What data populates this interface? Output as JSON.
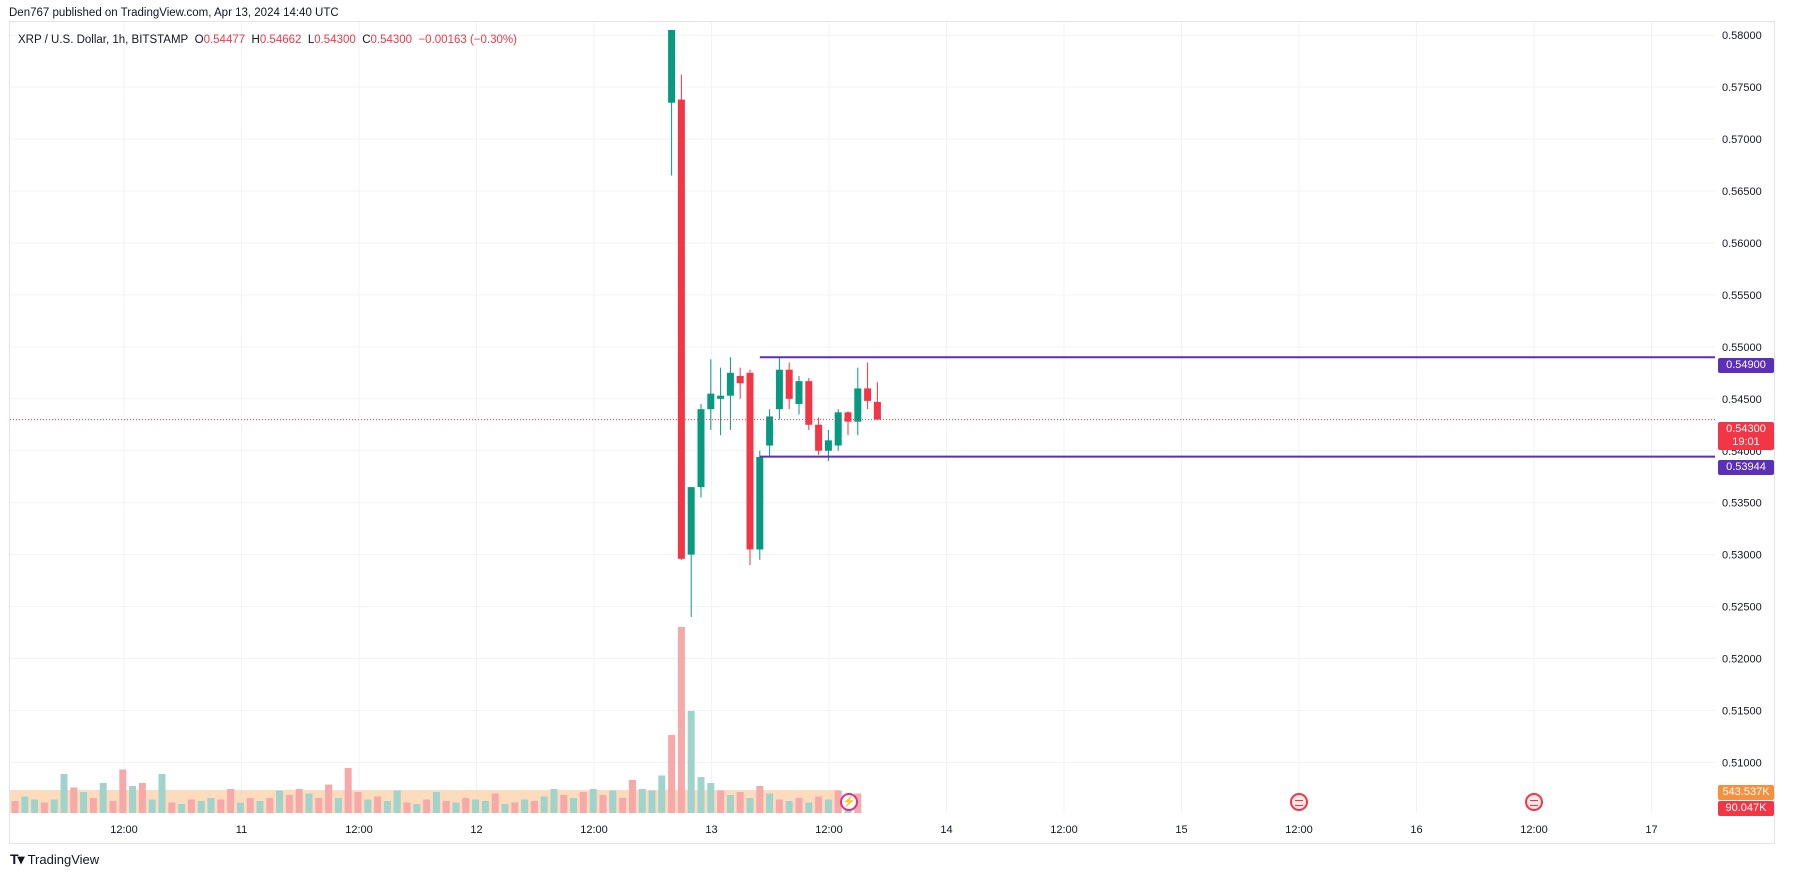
{
  "header": {
    "published": "Den767 published on TradingView.com, Apr 13, 2024 14:40 UTC"
  },
  "legend": {
    "symbol": "XRP / U.S. Dollar, 1h, BITSTAMP",
    "o_label": "O",
    "o": "0.54477",
    "h_label": "H",
    "h": "0.54662",
    "l_label": "L",
    "l": "0.54300",
    "c_label": "C",
    "c": "0.54300",
    "change": "−0.00163 (−0.30%)"
  },
  "price_tags": {
    "upper_level": "0.54900",
    "current": "0.54300",
    "countdown": "19:01",
    "lower_level": "0.53944",
    "volume_ma": "543.537K",
    "volume": "90.047K"
  },
  "footer": {
    "brand": "TradingView"
  },
  "colors": {
    "up": "#089981",
    "down": "#f23645",
    "level_line": "#5b2fb8",
    "vol_up": "#9fd3cb",
    "vol_down": "#f7a9a9",
    "vol_ma_band": "#fcd0a8",
    "grid": "#f0f3fa"
  },
  "icons": [
    "us-flag-event-icon",
    "us-flag-event-icon",
    "flash-icon"
  ],
  "chart_data": {
    "type": "candlestick",
    "interval": "1h",
    "y_axis": {
      "ticks": [
        "0.58000",
        "0.57500",
        "0.57000",
        "0.56500",
        "0.56000",
        "0.55500",
        "0.55000",
        "0.54500",
        "0.54000",
        "0.53500",
        "0.53000",
        "0.52500",
        "0.52000",
        "0.51500",
        "0.51000"
      ],
      "ylim": [
        0.5085,
        0.5805
      ],
      "position": "right"
    },
    "x_axis": {
      "ticks": [
        "12:00",
        "11",
        "12:00",
        "12",
        "12:00",
        "13",
        "12:00",
        "14",
        "12:00",
        "15",
        "12:00",
        "16",
        "12:00",
        "17"
      ]
    },
    "levels": [
      0.549,
      0.53944
    ],
    "current_price": 0.543,
    "candles_note": "only candles after the spike are shown with price; earlier bars are volume only",
    "candles": [
      {
        "o": 0.5735,
        "h": 0.5805,
        "l": 0.5665,
        "c": 0.5805
      },
      {
        "o": 0.5738,
        "h": 0.5762,
        "l": 0.5295,
        "c": 0.5296
      },
      {
        "o": 0.53,
        "h": 0.5365,
        "l": 0.524,
        "c": 0.5365
      },
      {
        "o": 0.5365,
        "h": 0.5445,
        "l": 0.5355,
        "c": 0.544
      },
      {
        "o": 0.544,
        "h": 0.5488,
        "l": 0.542,
        "c": 0.5455
      },
      {
        "o": 0.545,
        "h": 0.548,
        "l": 0.5415,
        "c": 0.5453
      },
      {
        "o": 0.5453,
        "h": 0.549,
        "l": 0.542,
        "c": 0.5475
      },
      {
        "o": 0.5472,
        "h": 0.548,
        "l": 0.545,
        "c": 0.5465
      },
      {
        "o": 0.5475,
        "h": 0.5478,
        "l": 0.529,
        "c": 0.5305
      },
      {
        "o": 0.5305,
        "h": 0.54,
        "l": 0.5295,
        "c": 0.5394
      },
      {
        "o": 0.5405,
        "h": 0.544,
        "l": 0.5395,
        "c": 0.5433
      },
      {
        "o": 0.544,
        "h": 0.549,
        "l": 0.543,
        "c": 0.5478
      },
      {
        "o": 0.5478,
        "h": 0.5485,
        "l": 0.544,
        "c": 0.545
      },
      {
        "o": 0.5445,
        "h": 0.5472,
        "l": 0.5435,
        "c": 0.5467
      },
      {
        "o": 0.5467,
        "h": 0.547,
        "l": 0.542,
        "c": 0.5425
      },
      {
        "o": 0.5425,
        "h": 0.5432,
        "l": 0.5396,
        "c": 0.54
      },
      {
        "o": 0.54,
        "h": 0.542,
        "l": 0.539,
        "c": 0.541
      },
      {
        "o": 0.5405,
        "h": 0.544,
        "l": 0.54,
        "c": 0.5437
      },
      {
        "o": 0.5437,
        "h": 0.5438,
        "l": 0.5415,
        "c": 0.5428
      },
      {
        "o": 0.5428,
        "h": 0.548,
        "l": 0.5415,
        "c": 0.546
      },
      {
        "o": 0.546,
        "h": 0.5485,
        "l": 0.544,
        "c": 0.5448
      },
      {
        "o": 0.5447,
        "h": 0.5466,
        "l": 0.543,
        "c": 0.543
      }
    ],
    "volume": [
      {
        "v": 0.8,
        "up": false
      },
      {
        "v": 1.1,
        "up": true
      },
      {
        "v": 0.9,
        "up": true
      },
      {
        "v": 0.7,
        "up": false
      },
      {
        "v": 0.9,
        "up": true
      },
      {
        "v": 2.6,
        "up": true
      },
      {
        "v": 1.7,
        "up": false
      },
      {
        "v": 1.4,
        "up": true
      },
      {
        "v": 1.0,
        "up": false
      },
      {
        "v": 2.0,
        "up": true
      },
      {
        "v": 0.8,
        "up": false
      },
      {
        "v": 2.9,
        "up": false
      },
      {
        "v": 1.8,
        "up": true
      },
      {
        "v": 2.0,
        "up": false
      },
      {
        "v": 0.9,
        "up": true
      },
      {
        "v": 2.6,
        "up": true
      },
      {
        "v": 0.7,
        "up": false
      },
      {
        "v": 0.6,
        "up": true
      },
      {
        "v": 0.9,
        "up": false
      },
      {
        "v": 0.8,
        "up": true
      },
      {
        "v": 1.0,
        "up": true
      },
      {
        "v": 0.9,
        "up": false
      },
      {
        "v": 1.6,
        "up": false
      },
      {
        "v": 0.7,
        "up": true
      },
      {
        "v": 1.0,
        "up": false
      },
      {
        "v": 0.8,
        "up": true
      },
      {
        "v": 1.0,
        "up": false
      },
      {
        "v": 1.5,
        "up": true
      },
      {
        "v": 1.2,
        "up": false
      },
      {
        "v": 1.6,
        "up": false
      },
      {
        "v": 1.3,
        "up": true
      },
      {
        "v": 1.0,
        "up": false
      },
      {
        "v": 1.9,
        "up": false
      },
      {
        "v": 1.0,
        "up": true
      },
      {
        "v": 3.0,
        "up": false
      },
      {
        "v": 1.4,
        "up": false
      },
      {
        "v": 0.9,
        "up": true
      },
      {
        "v": 1.1,
        "up": false
      },
      {
        "v": 0.8,
        "up": true
      },
      {
        "v": 1.5,
        "up": true
      },
      {
        "v": 0.7,
        "up": false
      },
      {
        "v": 0.6,
        "up": true
      },
      {
        "v": 0.9,
        "up": false
      },
      {
        "v": 1.4,
        "up": true
      },
      {
        "v": 0.8,
        "up": false
      },
      {
        "v": 0.7,
        "up": true
      },
      {
        "v": 1.0,
        "up": false
      },
      {
        "v": 0.9,
        "up": true
      },
      {
        "v": 0.8,
        "up": true
      },
      {
        "v": 1.3,
        "up": false
      },
      {
        "v": 0.6,
        "up": true
      },
      {
        "v": 0.7,
        "up": false
      },
      {
        "v": 0.9,
        "up": true
      },
      {
        "v": 0.8,
        "up": false
      },
      {
        "v": 1.1,
        "up": true
      },
      {
        "v": 1.6,
        "up": true
      },
      {
        "v": 1.2,
        "up": false
      },
      {
        "v": 1.0,
        "up": true
      },
      {
        "v": 1.4,
        "up": false
      },
      {
        "v": 1.6,
        "up": true
      },
      {
        "v": 1.2,
        "up": false
      },
      {
        "v": 1.5,
        "up": true
      },
      {
        "v": 1.0,
        "up": false
      },
      {
        "v": 2.2,
        "up": false
      },
      {
        "v": 1.6,
        "up": true
      },
      {
        "v": 1.5,
        "up": true
      },
      {
        "v": 2.5,
        "up": true
      },
      {
        "v": 5.2,
        "up": false
      },
      {
        "v": 12.4,
        "up": false
      },
      {
        "v": 6.8,
        "up": true
      },
      {
        "v": 2.4,
        "up": true
      },
      {
        "v": 2.0,
        "up": true
      },
      {
        "v": 1.5,
        "up": false
      },
      {
        "v": 1.2,
        "up": true
      },
      {
        "v": 1.4,
        "up": false
      },
      {
        "v": 1.0,
        "up": true
      },
      {
        "v": 1.8,
        "up": false
      },
      {
        "v": 1.3,
        "up": true
      },
      {
        "v": 0.9,
        "up": false
      },
      {
        "v": 0.8,
        "up": true
      },
      {
        "v": 1.0,
        "up": false
      },
      {
        "v": 0.7,
        "up": true
      },
      {
        "v": 1.1,
        "up": false
      },
      {
        "v": 0.9,
        "up": true
      },
      {
        "v": 1.5,
        "up": false
      },
      {
        "v": 0.8,
        "up": true
      },
      {
        "v": 1.3,
        "up": false
      }
    ]
  }
}
